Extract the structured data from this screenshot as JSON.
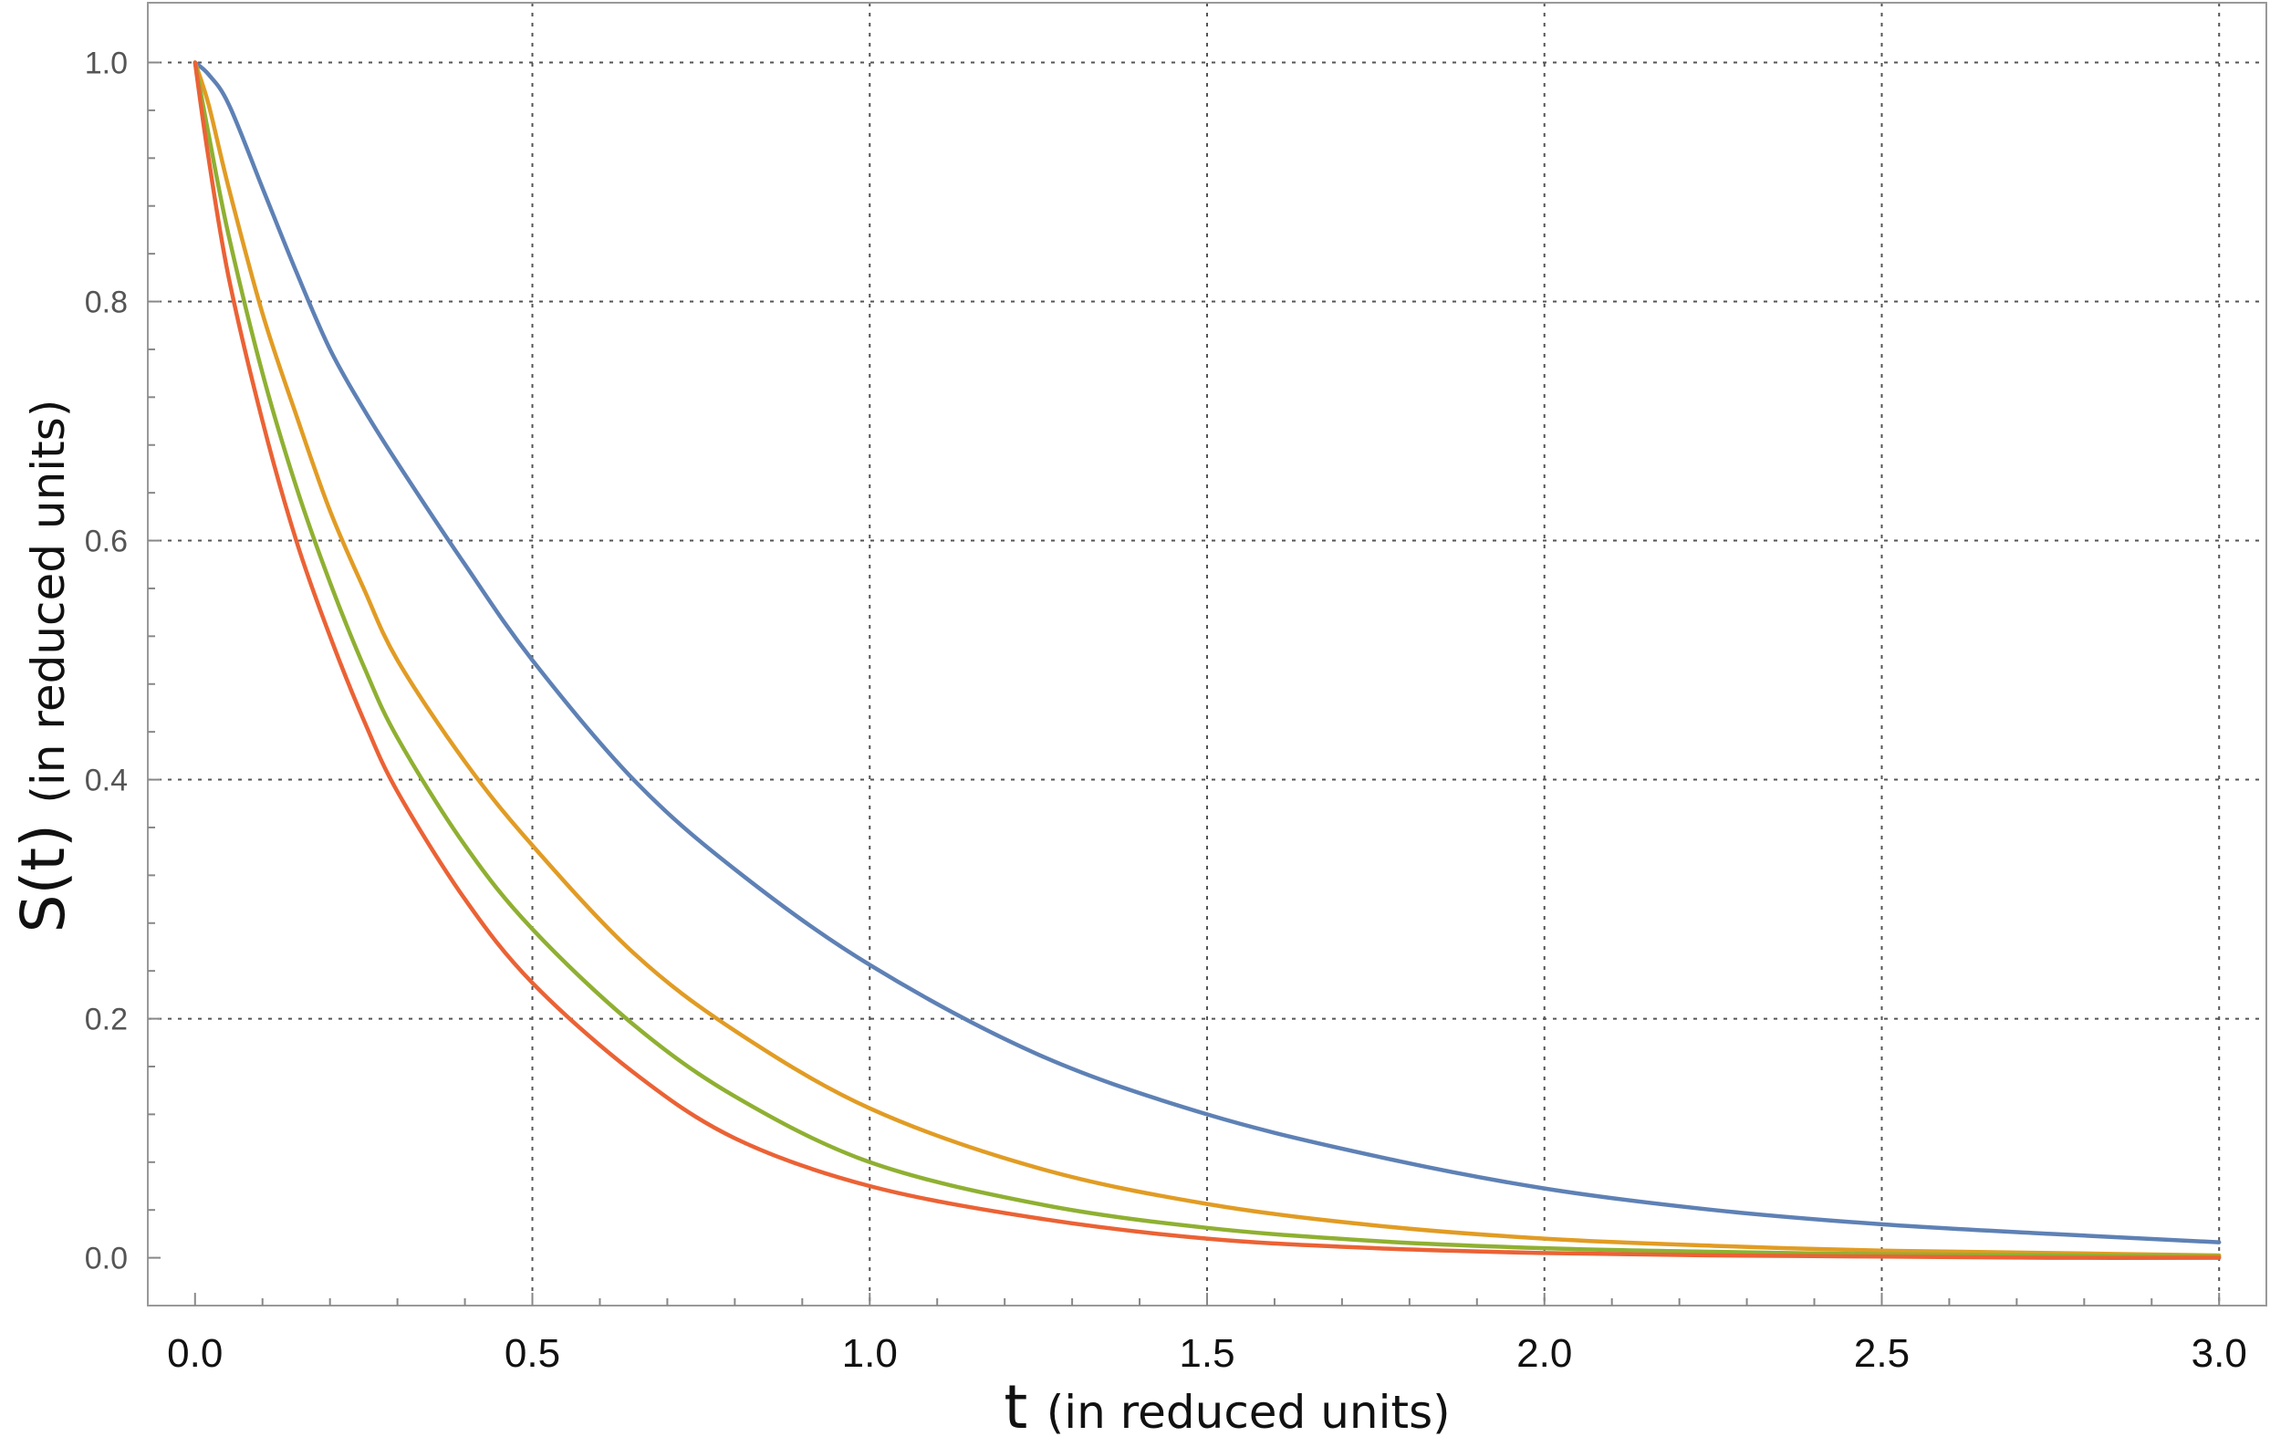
{
  "chart_data": {
    "type": "line",
    "title": "",
    "xlabel": "t (in reduced units)",
    "xlabel_var": "t",
    "xlabel_rest": "(in reduced units)",
    "ylabel": "S(t) (in reduced units)",
    "ylabel_var": "S(t)",
    "ylabel_rest": "(in reduced units)",
    "xlim": [
      -0.07,
      3.07
    ],
    "ylim": [
      -0.04,
      1.05
    ],
    "grid": true,
    "legend": "none",
    "x_ticks": [
      "0.0",
      "0.5",
      "1.0",
      "1.5",
      "2.0",
      "2.5",
      "3.0"
    ],
    "y_ticks": [
      "0.0",
      "0.2",
      "0.4",
      "0.6",
      "0.8",
      "1.0"
    ],
    "series": [
      {
        "color": "#5E81B5",
        "points": [
          [
            0.0,
            1.0
          ],
          [
            0.02,
            0.99
          ],
          [
            0.05,
            0.965
          ],
          [
            0.1,
            0.895
          ],
          [
            0.15,
            0.825
          ],
          [
            0.2,
            0.76
          ],
          [
            0.25,
            0.71
          ],
          [
            0.3,
            0.665
          ],
          [
            0.4,
            0.58
          ],
          [
            0.5,
            0.5
          ],
          [
            0.65,
            0.4
          ],
          [
            0.8,
            0.325
          ],
          [
            1.0,
            0.245
          ],
          [
            1.25,
            0.17
          ],
          [
            1.5,
            0.12
          ],
          [
            1.75,
            0.085
          ],
          [
            2.0,
            0.058
          ],
          [
            2.25,
            0.04
          ],
          [
            2.5,
            0.028
          ],
          [
            2.75,
            0.02
          ],
          [
            3.0,
            0.013
          ]
        ]
      },
      {
        "color": "#E19C24",
        "points": [
          [
            0.0,
            1.0
          ],
          [
            0.02,
            0.965
          ],
          [
            0.05,
            0.895
          ],
          [
            0.1,
            0.79
          ],
          [
            0.15,
            0.705
          ],
          [
            0.2,
            0.625
          ],
          [
            0.25,
            0.56
          ],
          [
            0.3,
            0.5
          ],
          [
            0.4,
            0.415
          ],
          [
            0.5,
            0.345
          ],
          [
            0.65,
            0.255
          ],
          [
            0.8,
            0.19
          ],
          [
            1.0,
            0.125
          ],
          [
            1.25,
            0.075
          ],
          [
            1.5,
            0.045
          ],
          [
            1.75,
            0.027
          ],
          [
            2.0,
            0.016
          ],
          [
            2.25,
            0.01
          ],
          [
            2.5,
            0.006
          ],
          [
            2.75,
            0.004
          ],
          [
            3.0,
            0.002
          ]
        ]
      },
      {
        "color": "#8FB032",
        "points": [
          [
            0.0,
            1.0
          ],
          [
            0.02,
            0.94
          ],
          [
            0.05,
            0.855
          ],
          [
            0.1,
            0.74
          ],
          [
            0.15,
            0.645
          ],
          [
            0.2,
            0.565
          ],
          [
            0.25,
            0.495
          ],
          [
            0.3,
            0.435
          ],
          [
            0.4,
            0.345
          ],
          [
            0.5,
            0.275
          ],
          [
            0.65,
            0.195
          ],
          [
            0.8,
            0.135
          ],
          [
            1.0,
            0.08
          ],
          [
            1.25,
            0.045
          ],
          [
            1.5,
            0.025
          ],
          [
            1.75,
            0.014
          ],
          [
            2.0,
            0.008
          ],
          [
            2.25,
            0.005
          ],
          [
            2.5,
            0.003
          ],
          [
            2.75,
            0.002
          ],
          [
            3.0,
            0.001
          ]
        ]
      },
      {
        "color": "#EB6235",
        "points": [
          [
            0.0,
            1.0
          ],
          [
            0.02,
            0.92
          ],
          [
            0.05,
            0.82
          ],
          [
            0.1,
            0.7
          ],
          [
            0.15,
            0.6
          ],
          [
            0.2,
            0.52
          ],
          [
            0.25,
            0.45
          ],
          [
            0.3,
            0.39
          ],
          [
            0.4,
            0.3
          ],
          [
            0.5,
            0.23
          ],
          [
            0.65,
            0.155
          ],
          [
            0.8,
            0.1
          ],
          [
            1.0,
            0.06
          ],
          [
            1.25,
            0.033
          ],
          [
            1.5,
            0.016
          ],
          [
            1.75,
            0.008
          ],
          [
            2.0,
            0.004
          ],
          [
            2.25,
            0.002
          ],
          [
            2.5,
            0.001
          ],
          [
            2.75,
            0.0
          ],
          [
            3.0,
            0.0
          ]
        ]
      }
    ]
  }
}
